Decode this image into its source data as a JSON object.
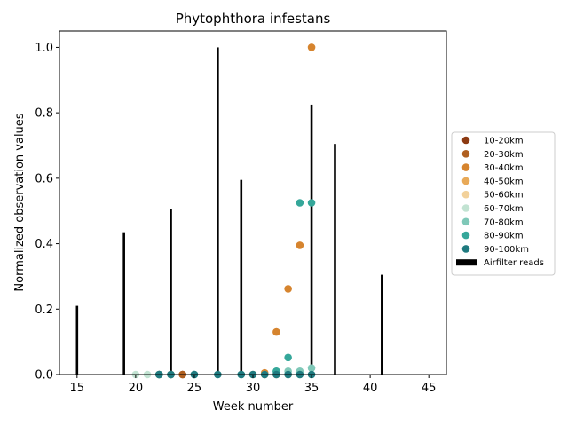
{
  "chart_data": {
    "type": "scatter",
    "title": "Phytophthora infestans",
    "xlabel": "Week number",
    "ylabel": "Normalized observation values",
    "xlim": [
      13.5,
      46.5
    ],
    "ylim": [
      0,
      1.05
    ],
    "xticks": [
      15,
      20,
      25,
      30,
      35,
      40,
      45
    ],
    "yticks": [
      0.0,
      0.2,
      0.4,
      0.6,
      0.8,
      1.0
    ],
    "xtick_labels": [
      "15",
      "20",
      "25",
      "30",
      "35",
      "40",
      "45"
    ],
    "ytick_labels": [
      "0.0",
      "0.2",
      "0.4",
      "0.6",
      "0.8",
      "1.0"
    ],
    "grid": false,
    "legend_position": "center-right outside",
    "airfilter": {
      "name": "Airfilter reads",
      "color": "#000000",
      "x": [
        15,
        19,
        23,
        27,
        29,
        35,
        37,
        41
      ],
      "values": [
        0.21,
        0.435,
        0.505,
        1.0,
        0.595,
        0.825,
        0.705,
        0.305
      ]
    },
    "series": [
      {
        "name": "10-20km",
        "color": "#8c3a12",
        "x": [
          22,
          23,
          24
        ],
        "values": [
          0.0,
          0.0,
          0.0
        ]
      },
      {
        "name": "20-30km",
        "color": "#b05f1f",
        "x": [
          24,
          31
        ],
        "values": [
          0.0,
          0.0
        ]
      },
      {
        "name": "30-40km",
        "color": "#d6842e",
        "x": [
          31,
          32,
          33,
          34,
          35
        ],
        "values": [
          0.005,
          0.13,
          0.262,
          0.395,
          1.0
        ]
      },
      {
        "name": "40-50km",
        "color": "#e8a958",
        "x": [
          32,
          33
        ],
        "values": [
          0.0,
          0.0
        ]
      },
      {
        "name": "50-60km",
        "color": "#f2d19a",
        "x": [
          30,
          31
        ],
        "values": [
          0.0,
          0.0
        ]
      },
      {
        "name": "60-70km",
        "color": "#c2e3d2",
        "x": [
          20,
          21,
          33,
          34
        ],
        "values": [
          0.0,
          0.0,
          0.0,
          0.0
        ]
      },
      {
        "name": "70-80km",
        "color": "#7fc8b8",
        "x": [
          32,
          33,
          34,
          35
        ],
        "values": [
          0.01,
          0.01,
          0.01,
          0.02
        ]
      },
      {
        "name": "80-90km",
        "color": "#35a79a",
        "x": [
          22,
          23,
          25,
          29,
          32,
          33,
          34,
          35
        ],
        "values": [
          0.0,
          0.0,
          0.0,
          0.0,
          0.01,
          0.052,
          0.525,
          0.525
        ]
      },
      {
        "name": "90-100km",
        "color": "#1f7a7f",
        "x": [
          22,
          23,
          25,
          27,
          29,
          30,
          31,
          32,
          33,
          34,
          35
        ],
        "values": [
          0.0,
          0.0,
          0.0,
          0.0,
          0.0,
          0.0,
          0.0,
          0.0,
          0.0,
          0.0,
          0.0
        ]
      }
    ]
  }
}
